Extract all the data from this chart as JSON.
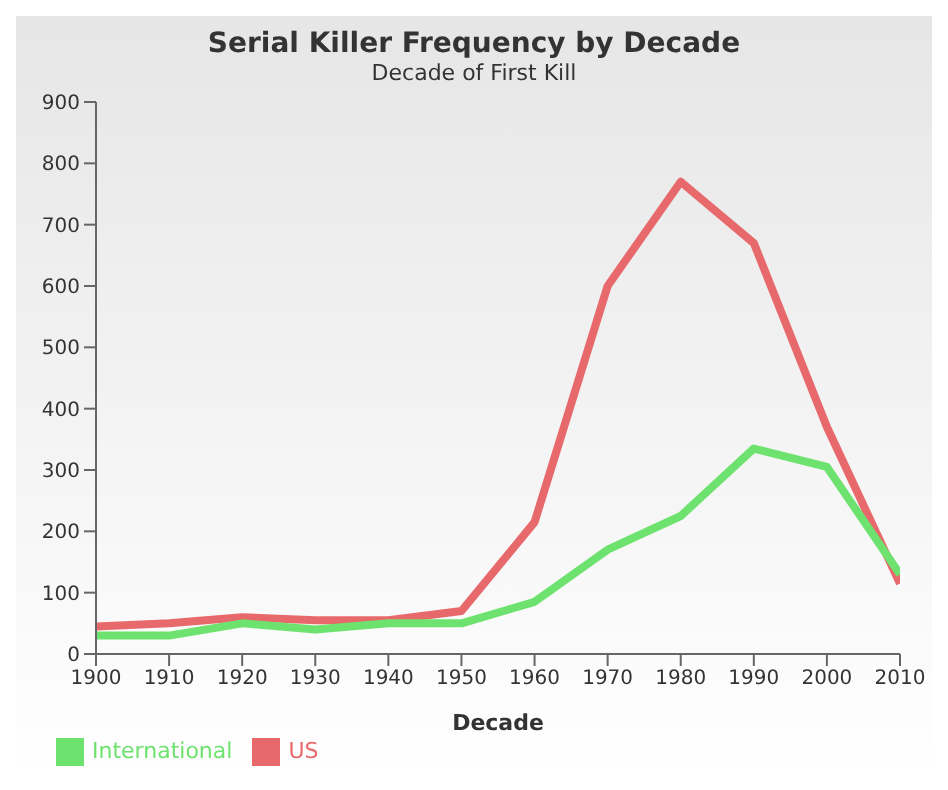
{
  "chart_data": {
    "type": "line",
    "title": "Serial Killer Frequency by Decade",
    "subtitle": "Decade of First Kill",
    "xlabel": "Decade",
    "x": [
      1900,
      1910,
      1920,
      1930,
      1940,
      1950,
      1960,
      1970,
      1980,
      1990,
      2000,
      2010
    ],
    "series": [
      {
        "name": "US",
        "color": "#e8696b",
        "values": [
          45,
          50,
          60,
          55,
          55,
          70,
          215,
          600,
          770,
          670,
          370,
          115
        ]
      },
      {
        "name": "International",
        "color": "#6ee26e",
        "values": [
          30,
          30,
          50,
          40,
          50,
          50,
          85,
          170,
          225,
          335,
          305,
          130
        ]
      }
    ],
    "xlim": [
      1900,
      2010
    ],
    "xticks": [
      1900,
      1910,
      1920,
      1930,
      1940,
      1950,
      1960,
      1970,
      1980,
      1990,
      2000,
      2010
    ],
    "ylim": [
      0,
      900
    ],
    "yticks": [
      0,
      100,
      200,
      300,
      400,
      500,
      600,
      700,
      800,
      900
    ],
    "grid": false,
    "legend": "bottom left",
    "marker": "none",
    "line_style": "solid"
  }
}
